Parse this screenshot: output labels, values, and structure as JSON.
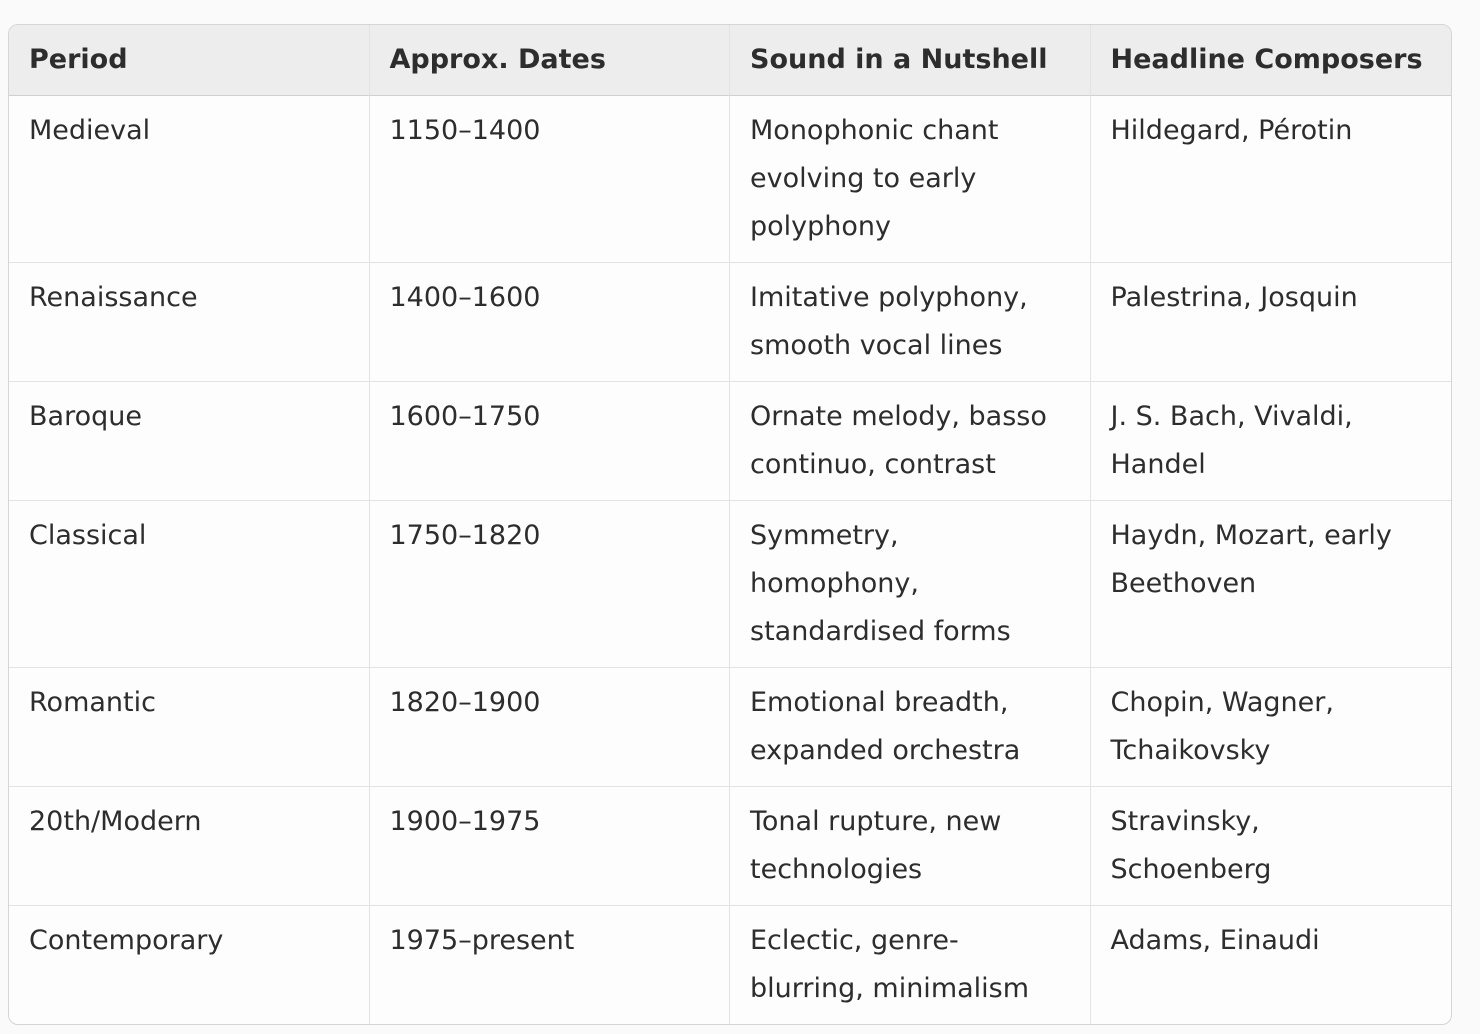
{
  "table": {
    "columns": [
      "Period",
      "Approx. Dates",
      "Sound in a Nutshell",
      "Headline Composers"
    ],
    "rows": [
      [
        "Medieval",
        "1150–1400",
        "Monophonic chant evolving to early polyphony",
        "Hildegard, Pérotin"
      ],
      [
        "Renaissance",
        "1400–1600",
        "Imitative polyphony, smooth vocal lines",
        "Palestrina, Josquin"
      ],
      [
        "Baroque",
        "1600–1750",
        "Ornate melody, basso continuo, contrast",
        "J. S. Bach, Vivaldi, Handel"
      ],
      [
        "Classical",
        "1750–1820",
        "Symmetry, homophony, standardised forms",
        "Haydn, Mozart, early Beethoven"
      ],
      [
        "Romantic",
        "1820–1900",
        "Emotional breadth, expanded orchestra",
        "Chopin, Wagner, Tchaikovsky"
      ],
      [
        "20th/Modern",
        "1900–1975",
        "Tonal rupture, new technologies",
        "Stravinsky, Schoenberg"
      ],
      [
        "Contemporary",
        "1975–present",
        "Eclectic, genre-blurring, minimalism",
        "Adams, Einaudi"
      ]
    ]
  },
  "colors": {
    "page_bg": "#fafafa",
    "table_bg": "#fdfdfd",
    "header_bg": "#ededed",
    "border_outer": "#d5d5d5",
    "border_inner": "#e3e3e3",
    "header_divider": "#d0d0d0",
    "text": "#2d2d2d"
  }
}
